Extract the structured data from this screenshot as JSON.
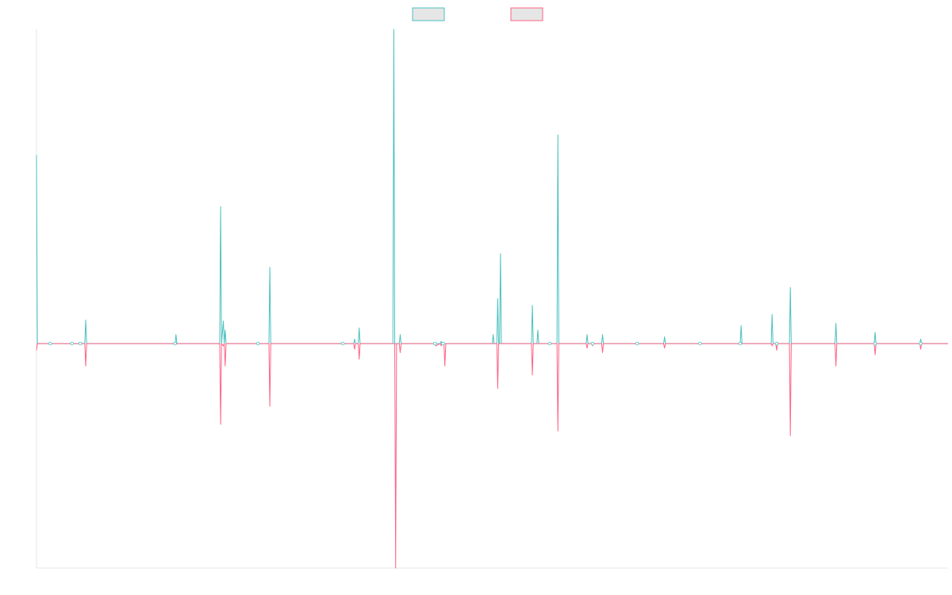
{
  "chart_data": {
    "type": "line",
    "title": "",
    "xlabel": "",
    "ylabel": "",
    "grid": false,
    "legend": "top-center",
    "ylim": [
      -100,
      140
    ],
    "xlim": [
      0,
      1000
    ],
    "series": [
      {
        "color": "#4bc0c0",
        "fill": "#e6e6e6",
        "points": [
          [
            0,
            84
          ],
          [
            1,
            0
          ],
          [
            3,
            0
          ],
          [
            15,
            0
          ],
          [
            16,
            0
          ],
          [
            18,
            0
          ],
          [
            39,
            0
          ],
          [
            40,
            0
          ],
          [
            41,
            0
          ],
          [
            47,
            0
          ],
          [
            48,
            0
          ],
          [
            49,
            0
          ],
          [
            53,
            0
          ],
          [
            54,
            10.5
          ],
          [
            55,
            0
          ],
          [
            152,
            0
          ],
          [
            153,
            4
          ],
          [
            154,
            0
          ],
          [
            201,
            0
          ],
          [
            202,
            61
          ],
          [
            203,
            0
          ],
          [
            205,
            10
          ],
          [
            206,
            0
          ],
          [
            207,
            6
          ],
          [
            208,
            0
          ],
          [
            243,
            0
          ],
          [
            244,
            0
          ],
          [
            245,
            0
          ],
          [
            255,
            0
          ],
          [
            256,
            34
          ],
          [
            257,
            0
          ],
          [
            336,
            0
          ],
          [
            337,
            0
          ],
          [
            338,
            0
          ],
          [
            348,
            0
          ],
          [
            349,
            2
          ],
          [
            350,
            0
          ],
          [
            353,
            0
          ],
          [
            354,
            7
          ],
          [
            355,
            0
          ],
          [
            391,
            0
          ],
          [
            392,
            140
          ],
          [
            393,
            0
          ],
          [
            398,
            0
          ],
          [
            399,
            4
          ],
          [
            400,
            0
          ],
          [
            437,
            0
          ],
          [
            438,
            0
          ],
          [
            443,
            0
          ],
          [
            444,
            1
          ],
          [
            445,
            0
          ],
          [
            446,
            0
          ],
          [
            447,
            0
          ],
          [
            500,
            0
          ],
          [
            501,
            4
          ],
          [
            502,
            0
          ],
          [
            505,
            0
          ],
          [
            506,
            20
          ],
          [
            507,
            0
          ],
          [
            508,
            0
          ],
          [
            509,
            40
          ],
          [
            510,
            0
          ],
          [
            543,
            0
          ],
          [
            544,
            17
          ],
          [
            545,
            0
          ],
          [
            549,
            0
          ],
          [
            550,
            6
          ],
          [
            551,
            0
          ],
          [
            562,
            0
          ],
          [
            563,
            0
          ],
          [
            564,
            0
          ],
          [
            571,
            0
          ],
          [
            572,
            93
          ],
          [
            573,
            0
          ],
          [
            603,
            0
          ],
          [
            604,
            4
          ],
          [
            605,
            0
          ],
          [
            609,
            0
          ],
          [
            610,
            0
          ],
          [
            611,
            0
          ],
          [
            620,
            0
          ],
          [
            621,
            4
          ],
          [
            622,
            0
          ],
          [
            658,
            0
          ],
          [
            659,
            0
          ],
          [
            660,
            0
          ],
          [
            688,
            0
          ],
          [
            689,
            3
          ],
          [
            690,
            0
          ],
          [
            727,
            0
          ],
          [
            728,
            0
          ],
          [
            729,
            0
          ],
          [
            772,
            0
          ],
          [
            773,
            8
          ],
          [
            774,
            0
          ],
          [
            806,
            0
          ],
          [
            807,
            13
          ],
          [
            808,
            0
          ],
          [
            811,
            0
          ],
          [
            812,
            0
          ],
          [
            813,
            0
          ],
          [
            826,
            0
          ],
          [
            827,
            25
          ],
          [
            828,
            0
          ],
          [
            876,
            0
          ],
          [
            877,
            9
          ],
          [
            878,
            0
          ],
          [
            919,
            0
          ],
          [
            920,
            5
          ],
          [
            921,
            0
          ],
          [
            969,
            0
          ],
          [
            970,
            2
          ],
          [
            971,
            0
          ],
          [
            999,
            0
          ],
          [
            1000,
            0
          ]
        ]
      },
      {
        "color": "#ff6384",
        "fill": "#e6e6e6",
        "points": [
          [
            0,
            -3
          ],
          [
            1,
            0
          ],
          [
            3,
            0
          ],
          [
            15,
            0
          ],
          [
            16,
            0
          ],
          [
            18,
            0
          ],
          [
            39,
            0
          ],
          [
            40,
            0
          ],
          [
            41,
            0
          ],
          [
            47,
            0
          ],
          [
            48,
            0
          ],
          [
            49,
            0
          ],
          [
            53,
            0
          ],
          [
            54,
            -10
          ],
          [
            55,
            0
          ],
          [
            152,
            0
          ],
          [
            153,
            0
          ],
          [
            154,
            0
          ],
          [
            201,
            0
          ],
          [
            202,
            -36
          ],
          [
            203,
            0
          ],
          [
            205,
            -1
          ],
          [
            206,
            0
          ],
          [
            207,
            -10
          ],
          [
            208,
            0
          ],
          [
            243,
            0
          ],
          [
            244,
            0
          ],
          [
            245,
            0
          ],
          [
            255,
            0
          ],
          [
            256,
            -28
          ],
          [
            257,
            0
          ],
          [
            336,
            0
          ],
          [
            337,
            0
          ],
          [
            338,
            0
          ],
          [
            348,
            0
          ],
          [
            349,
            -2.5
          ],
          [
            350,
            0
          ],
          [
            353,
            0
          ],
          [
            354,
            -7
          ],
          [
            355,
            0
          ],
          [
            393,
            0
          ],
          [
            394,
            -100
          ],
          [
            395,
            0
          ],
          [
            398,
            0
          ],
          [
            399,
            -4
          ],
          [
            400,
            0
          ],
          [
            437,
            0
          ],
          [
            438,
            -1
          ],
          [
            443,
            0
          ],
          [
            444,
            -1
          ],
          [
            445,
            0
          ],
          [
            447,
            0
          ],
          [
            448,
            -10
          ],
          [
            449,
            0
          ],
          [
            500,
            0
          ],
          [
            501,
            0
          ],
          [
            502,
            0
          ],
          [
            505,
            0
          ],
          [
            506,
            -20
          ],
          [
            507,
            0
          ],
          [
            508,
            0
          ],
          [
            509,
            0
          ],
          [
            510,
            0
          ],
          [
            543,
            0
          ],
          [
            544,
            -14
          ],
          [
            545,
            0
          ],
          [
            549,
            0
          ],
          [
            550,
            0
          ],
          [
            551,
            0
          ],
          [
            562,
            0
          ],
          [
            563,
            0
          ],
          [
            564,
            0
          ],
          [
            571,
            0
          ],
          [
            572,
            -39
          ],
          [
            573,
            0
          ],
          [
            603,
            0
          ],
          [
            604,
            -2
          ],
          [
            605,
            0
          ],
          [
            609,
            0
          ],
          [
            610,
            -1
          ],
          [
            611,
            0
          ],
          [
            620,
            0
          ],
          [
            621,
            -4
          ],
          [
            622,
            0
          ],
          [
            658,
            0
          ],
          [
            659,
            0
          ],
          [
            660,
            0
          ],
          [
            688,
            0
          ],
          [
            689,
            -2
          ],
          [
            690,
            0
          ],
          [
            727,
            0
          ],
          [
            728,
            0
          ],
          [
            729,
            0
          ],
          [
            772,
            0
          ],
          [
            773,
            0
          ],
          [
            774,
            0
          ],
          [
            806,
            0
          ],
          [
            807,
            -1
          ],
          [
            808,
            0
          ],
          [
            811,
            0
          ],
          [
            812,
            -3
          ],
          [
            813,
            0
          ],
          [
            826,
            0
          ],
          [
            827,
            -41
          ],
          [
            828,
            0
          ],
          [
            876,
            0
          ],
          [
            877,
            -10
          ],
          [
            878,
            0
          ],
          [
            919,
            0
          ],
          [
            920,
            -5
          ],
          [
            921,
            0
          ],
          [
            969,
            0
          ],
          [
            970,
            -2.5
          ],
          [
            971,
            0
          ],
          [
            999,
            0
          ],
          [
            1000,
            0
          ]
        ]
      }
    ]
  }
}
